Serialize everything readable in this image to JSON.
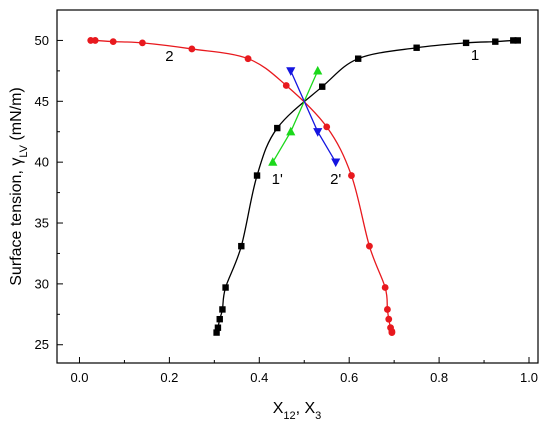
{
  "chart_data": {
    "type": "scatter",
    "xlabel": {
      "main": "X",
      "sub1": "12",
      "sep": ", X",
      "sub2": "3"
    },
    "ylabel": {
      "main": "Surface tension, γ",
      "sub": "LV",
      "unit": " (mN/m)"
    },
    "xlim": [
      -0.05,
      1.02
    ],
    "ylim": [
      23.5,
      52.5
    ],
    "xticks": [
      0.0,
      0.2,
      0.4,
      0.6,
      0.8,
      1.0
    ],
    "xtick_labels": [
      "0.0",
      "0.2",
      "0.4",
      "0.6",
      "0.8",
      "1.0"
    ],
    "yticks": [
      25,
      30,
      35,
      40,
      45,
      50
    ],
    "ytick_labels": [
      "25",
      "30",
      "35",
      "40",
      "45",
      "50"
    ],
    "grid": false,
    "annotations": [
      {
        "text": "1",
        "x": 0.88,
        "y": 48.4
      },
      {
        "text": "2",
        "x": 0.2,
        "y": 48.3
      },
      {
        "text": "1'",
        "x": 0.44,
        "y": 38.2
      },
      {
        "text": "2'",
        "x": 0.57,
        "y": 38.2
      }
    ],
    "series": [
      {
        "id": "1",
        "color": "#000000",
        "marker": "square",
        "connect": "curve",
        "x": [
          0.305,
          0.308,
          0.312,
          0.318,
          0.325,
          0.36,
          0.395,
          0.44,
          0.54,
          0.62,
          0.75,
          0.86,
          0.925,
          0.965,
          0.975
        ],
        "y": [
          26.0,
          26.4,
          27.1,
          27.9,
          29.7,
          33.1,
          38.9,
          42.8,
          46.2,
          48.5,
          49.4,
          49.8,
          49.9,
          50.0,
          50.0
        ]
      },
      {
        "id": "2",
        "color": "#e8191e",
        "marker": "circle",
        "connect": "curve",
        "x": [
          0.025,
          0.035,
          0.075,
          0.14,
          0.25,
          0.375,
          0.46,
          0.55,
          0.605,
          0.645,
          0.68,
          0.685,
          0.688,
          0.692,
          0.695,
          0.695
        ],
        "y": [
          50.0,
          50.0,
          49.9,
          49.8,
          49.3,
          48.5,
          46.3,
          42.9,
          38.9,
          33.1,
          29.7,
          27.9,
          27.1,
          26.4,
          26.1,
          26.0
        ]
      },
      {
        "id": "1'",
        "color": "#1bd81b",
        "marker": "triangle-up",
        "connect": "line",
        "x": [
          0.43,
          0.47,
          0.53
        ],
        "y": [
          40.0,
          42.5,
          47.5
        ]
      },
      {
        "id": "2'",
        "color": "#1515e0",
        "marker": "triangle-down",
        "connect": "line",
        "x": [
          0.47,
          0.53,
          0.57
        ],
        "y": [
          47.5,
          42.5,
          40.0
        ]
      }
    ]
  }
}
